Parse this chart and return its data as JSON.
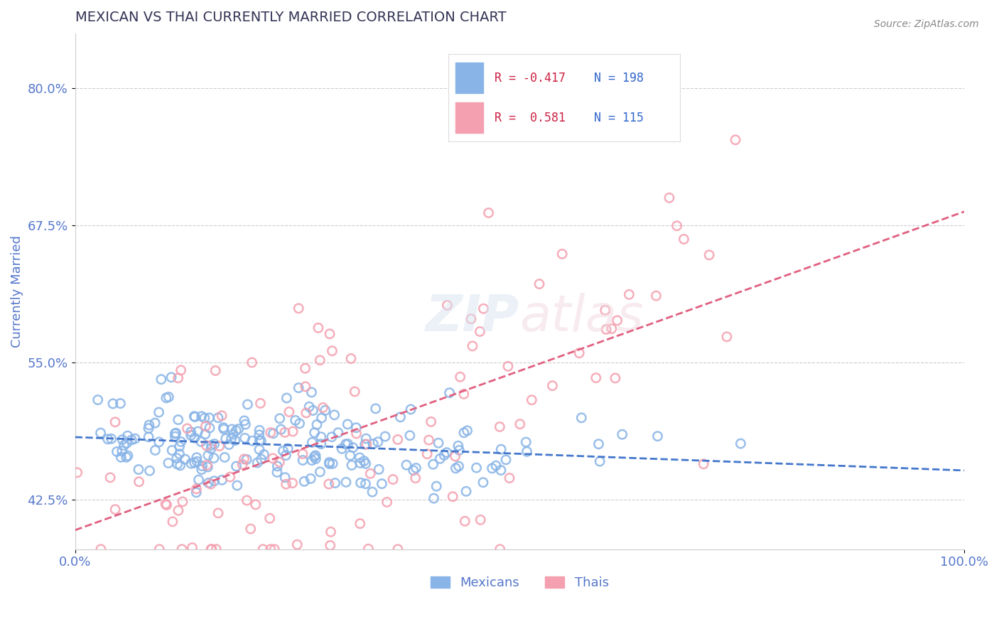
{
  "title": "MEXICAN VS THAI CURRENTLY MARRIED CORRELATION CHART",
  "source": "Source: ZipAtlas.com",
  "xlabel": "",
  "ylabel": "Currently Married",
  "xlim": [
    0.0,
    1.0
  ],
  "ylim": [
    0.38,
    0.85
  ],
  "yticks": [
    0.425,
    0.55,
    0.675,
    0.8
  ],
  "ytick_labels": [
    "42.5%",
    "55.0%",
    "67.5%",
    "80.0%"
  ],
  "xtick_labels": [
    "0.0%",
    "100.0%"
  ],
  "legend_r_mexican": "-0.417",
  "legend_n_mexican": "198",
  "legend_r_thai": "0.581",
  "legend_n_thai": "115",
  "mexican_color": "#88b4e7",
  "thai_color": "#f4a0b0",
  "mexican_line_color": "#4477cc",
  "thai_line_color": "#e06080",
  "background_color": "#ffffff",
  "grid_color": "#cccccc",
  "title_color": "#333355",
  "tick_color": "#5577cc",
  "legend_r_color_mexican": "#cc2244",
  "legend_r_color_thai": "#cc2244",
  "legend_n_color": "#3366cc",
  "mexican_scatter_seed": 42,
  "thai_scatter_seed": 123,
  "n_mexican": 198,
  "n_thai": 115,
  "figsize": [
    14.06,
    8.92
  ],
  "dpi": 100
}
